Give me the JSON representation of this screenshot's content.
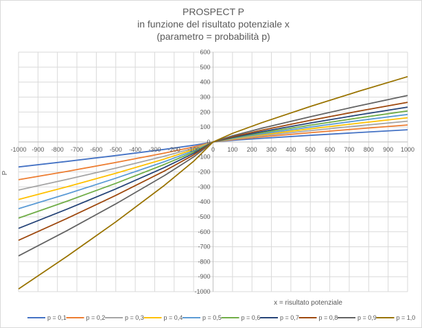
{
  "chart_data": {
    "type": "line",
    "title": [
      "PROSPECT P",
      "in funzione del risultato potenziale x",
      "(parametro = probabilità p)"
    ],
    "xlabel": "x = risultato potenziale",
    "ylabel": "P",
    "xlim": [
      -1000,
      1000
    ],
    "ylim": [
      -1000,
      600
    ],
    "xticks": [
      -1000,
      -900,
      -800,
      -700,
      -600,
      -500,
      -400,
      -300,
      -200,
      -100,
      0,
      100,
      200,
      300,
      400,
      500,
      600,
      700,
      800,
      900,
      1000
    ],
    "yticks": [
      600,
      500,
      400,
      300,
      200,
      100,
      0,
      -100,
      -200,
      -300,
      -400,
      -500,
      -600,
      -700,
      -800,
      -900,
      -1000
    ],
    "grid": true,
    "legend_position": "bottom",
    "x": [
      -1000,
      -750,
      -500,
      -250,
      -100,
      0,
      100,
      250,
      500,
      750,
      1000
    ],
    "series": [
      {
        "name": "p = 0,1",
        "color": "#4472C4",
        "values": [
          -167.2,
          -129.9,
          -90.8,
          -49.4,
          -22.0,
          0,
          10.7,
          24.0,
          44.2,
          63.2,
          81.3
        ]
      },
      {
        "name": "p = 0,2",
        "color": "#ED7D31",
        "values": [
          -252.4,
          -196.2,
          -137.2,
          -74.5,
          -33.3,
          0,
          15.0,
          33.6,
          61.9,
          88.5,
          113.8
        ]
      },
      {
        "name": "p = 0,3",
        "color": "#A5A5A5",
        "values": [
          -321.7,
          -250.1,
          -174.8,
          -95.0,
          -42.4,
          0,
          18.3,
          41.0,
          75.5,
          108.0,
          139.0
        ]
      },
      {
        "name": "p = 0,4",
        "color": "#FFC000",
        "values": [
          -384.6,
          -298.9,
          -209.0,
          -113.6,
          -50.7,
          0,
          21.3,
          47.7,
          87.8,
          125.5,
          161.5
        ]
      },
      {
        "name": "p = 0,5",
        "color": "#5B9BD5",
        "values": [
          -445.9,
          -346.6,
          -242.3,
          -131.7,
          -58.8,
          0,
          24.2,
          54.2,
          99.8,
          142.7,
          183.6
        ]
      },
      {
        "name": "p = 0,6",
        "color": "#70AD47",
        "values": [
          -508.8,
          -395.5,
          -276.5,
          -150.2,
          -67.1,
          0,
          27.3,
          61.1,
          112.4,
          160.8,
          206.9
        ]
      },
      {
        "name": "p = 0,7",
        "color": "#264478",
        "values": [
          -577.3,
          -448.7,
          -313.7,
          -170.5,
          -76.1,
          0,
          30.7,
          68.8,
          126.6,
          181.1,
          233.0
        ]
      },
      {
        "name": "p = 0,8",
        "color": "#9E480E",
        "values": [
          -656.9,
          -510.6,
          -357.0,
          -194.0,
          -86.6,
          0,
          34.9,
          78.3,
          144.1,
          206.1,
          265.1
        ]
      },
      {
        "name": "p = 0,9",
        "color": "#636363",
        "values": [
          -761.0,
          -591.6,
          -413.6,
          -224.7,
          -100.3,
          0,
          41.0,
          91.7,
          168.8,
          241.5,
          310.7
        ]
      },
      {
        "name": "p = 1,0",
        "color": "#997300",
        "values": [
          -982.1,
          -763.4,
          -533.7,
          -290.0,
          -129.5,
          0,
          57.5,
          128.9,
          237.2,
          339.3,
          436.5
        ]
      }
    ]
  }
}
